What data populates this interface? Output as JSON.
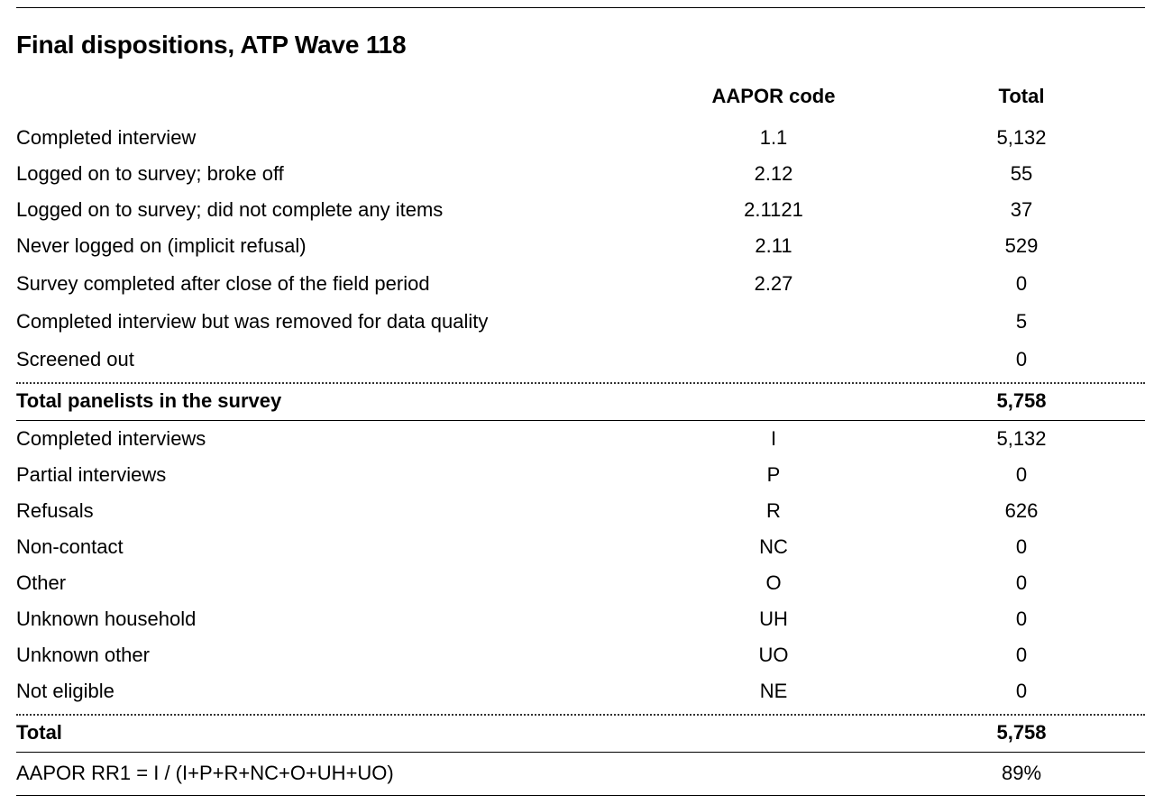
{
  "title": "Final dispositions, ATP Wave 118",
  "headers": {
    "code": "AAPOR code",
    "total": "Total"
  },
  "section1": [
    {
      "label": "Completed interview",
      "code": "1.1",
      "total": "5,132"
    },
    {
      "label": "Logged on to survey; broke off",
      "code": "2.12",
      "total": "55"
    },
    {
      "label": "Logged on to survey; did not complete any items",
      "code": "2.1121",
      "total": "37"
    },
    {
      "label": "Never logged on (implicit refusal)",
      "code": "2.11",
      "total": "529"
    },
    {
      "label": "Survey completed after close of the field period",
      "code": "2.27",
      "total": "0"
    },
    {
      "label": "Completed interview but was removed for data quality",
      "code": "",
      "total": "5"
    },
    {
      "label": "Screened out",
      "code": "",
      "total": "0"
    }
  ],
  "subtotal": {
    "label": "Total panelists in the survey",
    "total": "5,758"
  },
  "section2": [
    {
      "label": "Completed interviews",
      "code": "I",
      "total": "5,132"
    },
    {
      "label": "Partial interviews",
      "code": "P",
      "total": "0"
    },
    {
      "label": "Refusals",
      "code": "R",
      "total": "626"
    },
    {
      "label": "Non-contact",
      "code": "NC",
      "total": "0"
    },
    {
      "label": "Other",
      "code": "O",
      "total": "0"
    },
    {
      "label": "Unknown household",
      "code": "UH",
      "total": "0"
    },
    {
      "label": "Unknown other",
      "code": "UO",
      "total": "0"
    },
    {
      "label": "Not eligible",
      "code": "NE",
      "total": "0"
    }
  ],
  "grand_total": {
    "label": "Total",
    "total": "5,758"
  },
  "response_rate": {
    "label": "AAPOR RR1 = I / (I+P+R+NC+O+UH+UO)",
    "total": "89%"
  }
}
